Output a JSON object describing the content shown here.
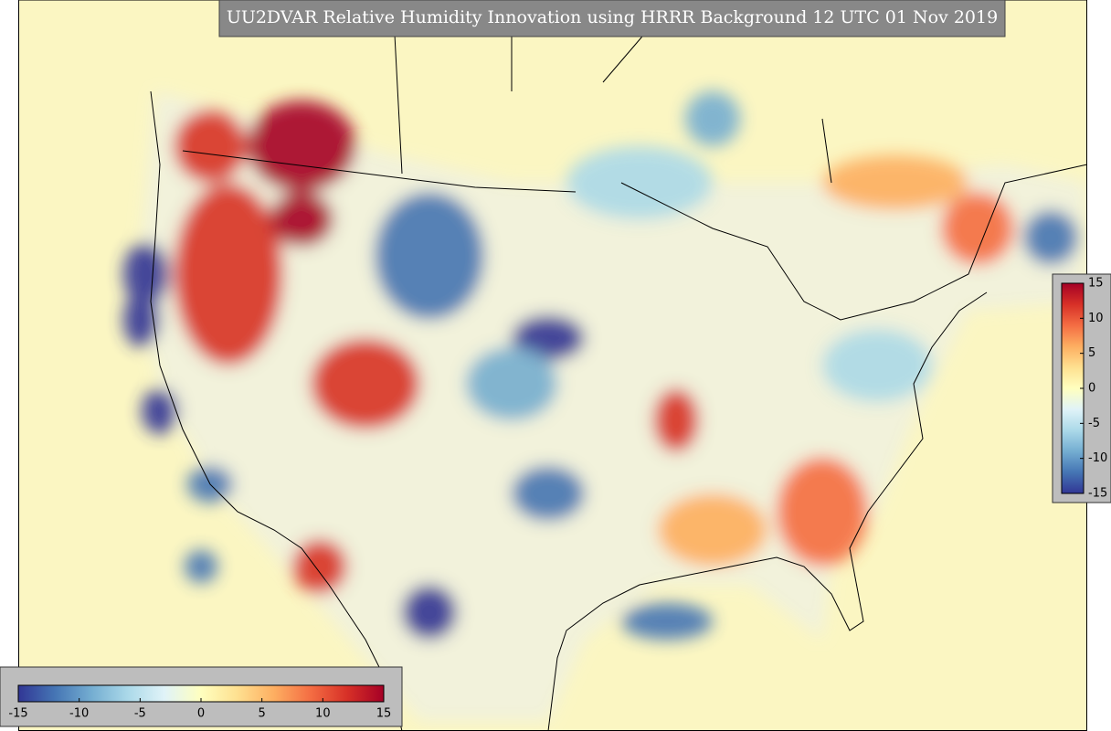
{
  "title": "UU2DVAR Relative Humidity Innovation using HRRR Background 12 UTC 01 Nov 2019",
  "colorbar_bottom": {
    "lim": [
      -15,
      15
    ],
    "ticks": [
      -15,
      -10,
      -5,
      0,
      5,
      10,
      15
    ]
  },
  "colorbar_right": {
    "lim": [
      -15,
      15
    ],
    "ticks": [
      -15,
      -10,
      -5,
      0,
      5,
      10,
      15
    ]
  },
  "colormap": [
    "#313695",
    "#4575b4",
    "#74add1",
    "#abd9e9",
    "#e0f3f8",
    "#ffffbf",
    "#fee090",
    "#fdae61",
    "#f46d43",
    "#d73027",
    "#a50026"
  ]
}
